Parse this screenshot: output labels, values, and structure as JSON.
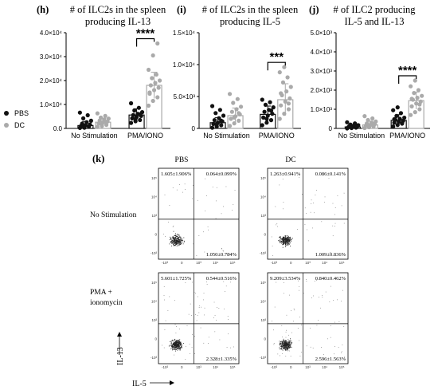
{
  "chart_data": [
    {
      "panel": "(h)",
      "type": "bar",
      "title_lines": [
        "# of ILC2s in the spleen",
        "producing IL-13"
      ],
      "categories": [
        "No Stimulation",
        "PMA/IONO"
      ],
      "ylim": [
        0,
        40000
      ],
      "yticks": [
        "0.0",
        "1.0×10⁴",
        "2.0×10⁴",
        "3.0×10⁴",
        "4.0×10⁴"
      ],
      "significance": "****",
      "series": [
        {
          "name": "PBS",
          "color": "#111111",
          "means": [
            1200,
            5600
          ],
          "sd": [
            1700,
            2600
          ],
          "points": [
            [
              200,
              500,
              800,
              1000,
              1300,
              1600,
              2000,
              2600,
              3200,
              4200,
              5500,
              6600,
              300,
              900
            ],
            [
              2300,
              3000,
              3500,
              4200,
              4800,
              5200,
              5600,
              6100,
              6800,
              7500,
              8600,
              10500,
              4000,
              5900
            ]
          ]
        },
        {
          "name": "DC",
          "color": "#aaaaaa",
          "means": [
            2600,
            18000
          ],
          "sd": [
            1600,
            5500
          ],
          "points": [
            [
              600,
              1000,
              1500,
              2000,
              2500,
              2900,
              3300,
              3700,
              4100,
              4500,
              5200,
              6300,
              1800,
              2700
            ],
            [
              9500,
              11500,
              13000,
              14500,
              16000,
              17000,
              18000,
              19000,
              20000,
              21000,
              22500,
              24500,
              30500,
              35500,
              15000
            ]
          ]
        }
      ]
    },
    {
      "panel": "(i)",
      "type": "bar",
      "title_lines": [
        "# of ILC2s in the spleen",
        "producing IL-5"
      ],
      "categories": [
        "No Stimulation",
        "PMA/IONO"
      ],
      "ylim": [
        0,
        15000
      ],
      "yticks": [
        "0",
        "5.0×10³",
        "1.0×10⁴",
        "1.5×10⁴"
      ],
      "significance": "***",
      "series": [
        {
          "name": "PBS",
          "color": "#111111",
          "means": [
            900,
            2200
          ],
          "sd": [
            800,
            1300
          ],
          "points": [
            [
              100,
              300,
              500,
              700,
              900,
              1100,
              1300,
              1600,
              2000,
              2400,
              2900,
              3500,
              600,
              1200
            ],
            [
              500,
              900,
              1300,
              1700,
              2000,
              2300,
              2600,
              2900,
              3300,
              3700,
              4100,
              4500,
              1500,
              2800
            ]
          ]
        },
        {
          "name": "DC",
          "color": "#aaaaaa",
          "means": [
            2000,
            4500
          ],
          "sd": [
            1200,
            2500
          ],
          "points": [
            [
              400,
              800,
              1200,
              1500,
              1900,
              2200,
              2600,
              3000,
              3400,
              4000,
              4600,
              5400,
              1700,
              2400
            ],
            [
              1500,
              2300,
              3000,
              3600,
              4200,
              4700,
              5200,
              5800,
              6500,
              7200,
              8000,
              8800,
              9600,
              3900,
              5500
            ]
          ]
        }
      ]
    },
    {
      "panel": "(j)",
      "type": "bar",
      "title_lines": [
        "# of ILC2 producing",
        "IL-5 and IL-13"
      ],
      "categories": [
        "No Stimulation",
        "PMA/IONO"
      ],
      "ylim": [
        0,
        5000
      ],
      "yticks": [
        "0",
        "1.0×10³",
        "2.0×10³",
        "3.0×10³",
        "4.0×10³",
        "5.0×10³"
      ],
      "significance": "****",
      "series": [
        {
          "name": "PBS",
          "color": "#111111",
          "means": [
            80,
            420
          ],
          "sd": [
            100,
            300
          ],
          "points": [
            [
              0,
              20,
              40,
              60,
              80,
              100,
              120,
              140,
              170,
              200,
              260,
              320,
              50,
              90
            ],
            [
              100,
              180,
              250,
              300,
              350,
              400,
              450,
              500,
              560,
              650,
              800,
              950,
              1100,
              270,
              480
            ]
          ]
        },
        {
          "name": "DC",
          "color": "#aaaaaa",
          "means": [
            180,
            1450
          ],
          "sd": [
            200,
            450
          ],
          "points": [
            [
              20,
              60,
              100,
              140,
              180,
              220,
              260,
              300,
              360,
              440,
              520,
              640,
              120,
              240
            ],
            [
              700,
              850,
              1000,
              1150,
              1300,
              1400,
              1500,
              1600,
              1700,
              1850,
              2000,
              2200,
              2500,
              1250,
              1550
            ]
          ]
        }
      ]
    }
  ],
  "legend": [
    {
      "label": "PBS",
      "color": "#111111"
    },
    {
      "label": "DC",
      "color": "#aaaaaa"
    }
  ],
  "flow": {
    "panel": "(k)",
    "col_headers": [
      "PBS",
      "DC"
    ],
    "row_labels": [
      [
        "No Stimulation"
      ],
      [
        "PMA +",
        "ionomycin"
      ]
    ],
    "y_axis_label": "IL-13",
    "x_axis_label": "IL-5",
    "mini_xticks": [
      "-10³",
      "0",
      "10³",
      "10⁴",
      "10⁵"
    ],
    "mini_yticks": [
      "10⁵",
      "10⁴",
      "10³",
      "0",
      "-10³"
    ],
    "plots": [
      {
        "row": 0,
        "col": 0,
        "ul": "1.605±1.906%",
        "ur": "0.064±0.099%",
        "lr": "1.050±0.784%",
        "density": 1.0
      },
      {
        "row": 0,
        "col": 1,
        "ul": "1.263±0.941%",
        "ur": "0.086±0.141%",
        "lr": "1.009±0.836%",
        "density": 1.0
      },
      {
        "row": 1,
        "col": 0,
        "ul": "5.601±1.725%",
        "ur": "0.544±0.516%",
        "lr": "2.328±1.335%",
        "density": 1.25
      },
      {
        "row": 1,
        "col": 1,
        "ul": "9.209±3.534%",
        "ur": "0.840±0.462%",
        "lr": "2.596±1.563%",
        "density": 1.3
      }
    ]
  }
}
